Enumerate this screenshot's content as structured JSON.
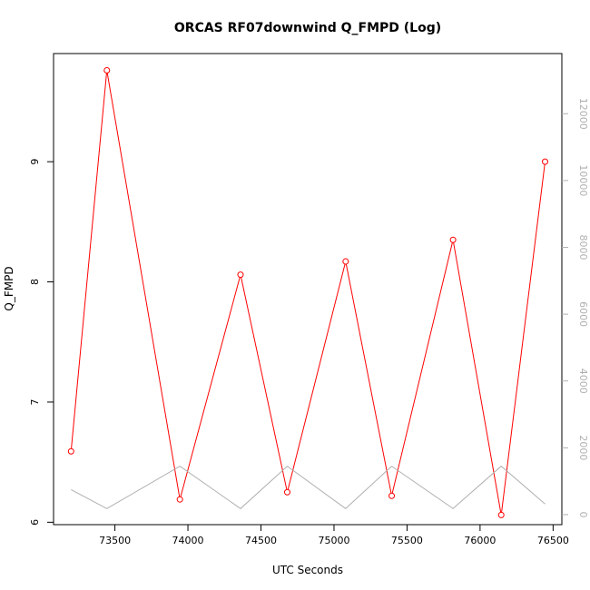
{
  "chart_data": {
    "type": "line",
    "title": "ORCAS RF07downwind Q_FMPD (Log)",
    "xlabel": "UTC Seconds",
    "ylabel": "Q_FMPD",
    "xlim": [
      73080,
      76560
    ],
    "ylim": [
      5.98,
      9.9
    ],
    "y2lim": [
      -300,
      13800
    ],
    "x_ticks": [
      73500,
      74000,
      74500,
      75000,
      75500,
      76000,
      76500
    ],
    "y_ticks": [
      6,
      7,
      8,
      9
    ],
    "y2_ticks": [
      0,
      2000,
      4000,
      6000,
      8000,
      10000,
      12000
    ],
    "series": [
      {
        "axis": "left",
        "color": "#ff0000",
        "marker": "open-circle",
        "x": [
          73200,
          73445,
          73945,
          74360,
          74680,
          75080,
          75395,
          75815,
          76145,
          76445
        ],
        "y": [
          6.59,
          9.76,
          6.19,
          8.06,
          6.25,
          8.17,
          6.22,
          8.35,
          6.06,
          9.0
        ]
      },
      {
        "axis": "right",
        "color": "#b0b0b0",
        "marker": "none",
        "x": [
          73200,
          73445,
          73945,
          74360,
          74680,
          75080,
          75395,
          75815,
          76145,
          76445
        ],
        "y": [
          750,
          180,
          1450,
          180,
          1450,
          180,
          1450,
          180,
          1450,
          320
        ]
      }
    ]
  }
}
